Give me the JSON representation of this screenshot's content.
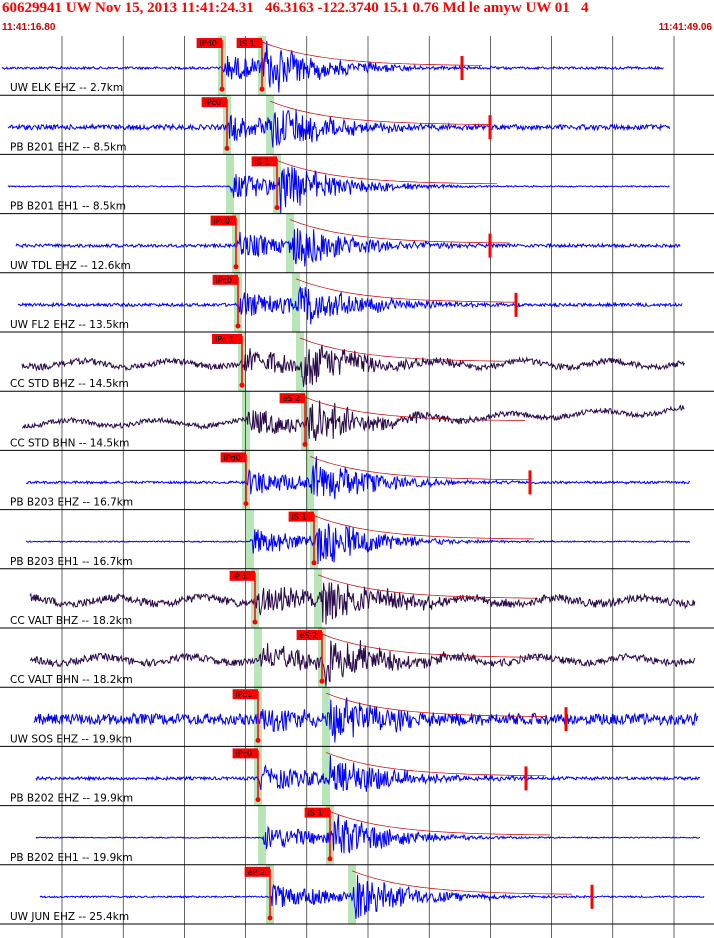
{
  "header": {
    "title": "60629941 UW Nov 15, 2013 11:41:24.31   46.3163 -122.3740 15.1 0.76 Md le amyw UW 01   4",
    "start_time": "11:41:16.80",
    "end_time": "11:41:49.06"
  },
  "colors": {
    "vertical_trace": "#0000ff",
    "broadband_trace": "#2a0a4a",
    "pick_marker": "#ff0000",
    "window_shade": "#b8e6b8",
    "title_text": "#ff0000"
  },
  "chart_data": {
    "type": "seismogram",
    "time_range": [
      "11:41:16.80",
      "11:41:49.06"
    ],
    "grid": "vertical lines on",
    "channels": [
      {
        "label": "UW ELK EHZ -- 2.7km",
        "trace": "blue",
        "picks": [
          "iPd0",
          "iS 1"
        ]
      },
      {
        "label": "PB B201 EHZ -- 8.5km",
        "trace": "blue",
        "picks": [
          "iPc0"
        ]
      },
      {
        "label": "PB B201 EH1 -- 8.5km",
        "trace": "blue",
        "picks": [
          "iS 1"
        ]
      },
      {
        "label": "UW TDL EHZ -- 12.6km",
        "trace": "blue",
        "picks": [
          "iPc0"
        ]
      },
      {
        "label": "UW FL2 EHZ -- 13.5km",
        "trace": "blue",
        "picks": [
          "iPc0"
        ]
      },
      {
        "label": "CC STD BHZ -- 14.5km",
        "trace": "dark",
        "picks": [
          "iPc 1"
        ]
      },
      {
        "label": "CC STD BHN -- 14.5km",
        "trace": "dark",
        "picks": [
          "eS 2"
        ]
      },
      {
        "label": "PB B203 EHZ -- 16.7km",
        "trace": "blue",
        "picks": [
          "iPd0"
        ]
      },
      {
        "label": "PB B203 EH1 -- 16.7km",
        "trace": "blue",
        "picks": [
          "iS 1"
        ]
      },
      {
        "label": "CC VALT BHZ -- 18.2km",
        "trace": "dark",
        "picks": [
          "iP 1"
        ]
      },
      {
        "label": "CC VALT BHN -- 18.2km",
        "trace": "dark",
        "picks": [
          "eS 2"
        ]
      },
      {
        "label": "UW SOS EHZ -- 19.9km",
        "trace": "blue",
        "picks": [
          "iPc1"
        ]
      },
      {
        "label": "PB B202 EHZ -- 19.9km",
        "trace": "blue",
        "picks": [
          "iPc0"
        ]
      },
      {
        "label": "PB B202 EH1 -- 19.9km",
        "trace": "blue",
        "picks": [
          "iS 1"
        ]
      },
      {
        "label": "UW JUN EHZ -- 25.4km",
        "trace": "blue",
        "picks": [
          "eP 2"
        ]
      }
    ]
  }
}
